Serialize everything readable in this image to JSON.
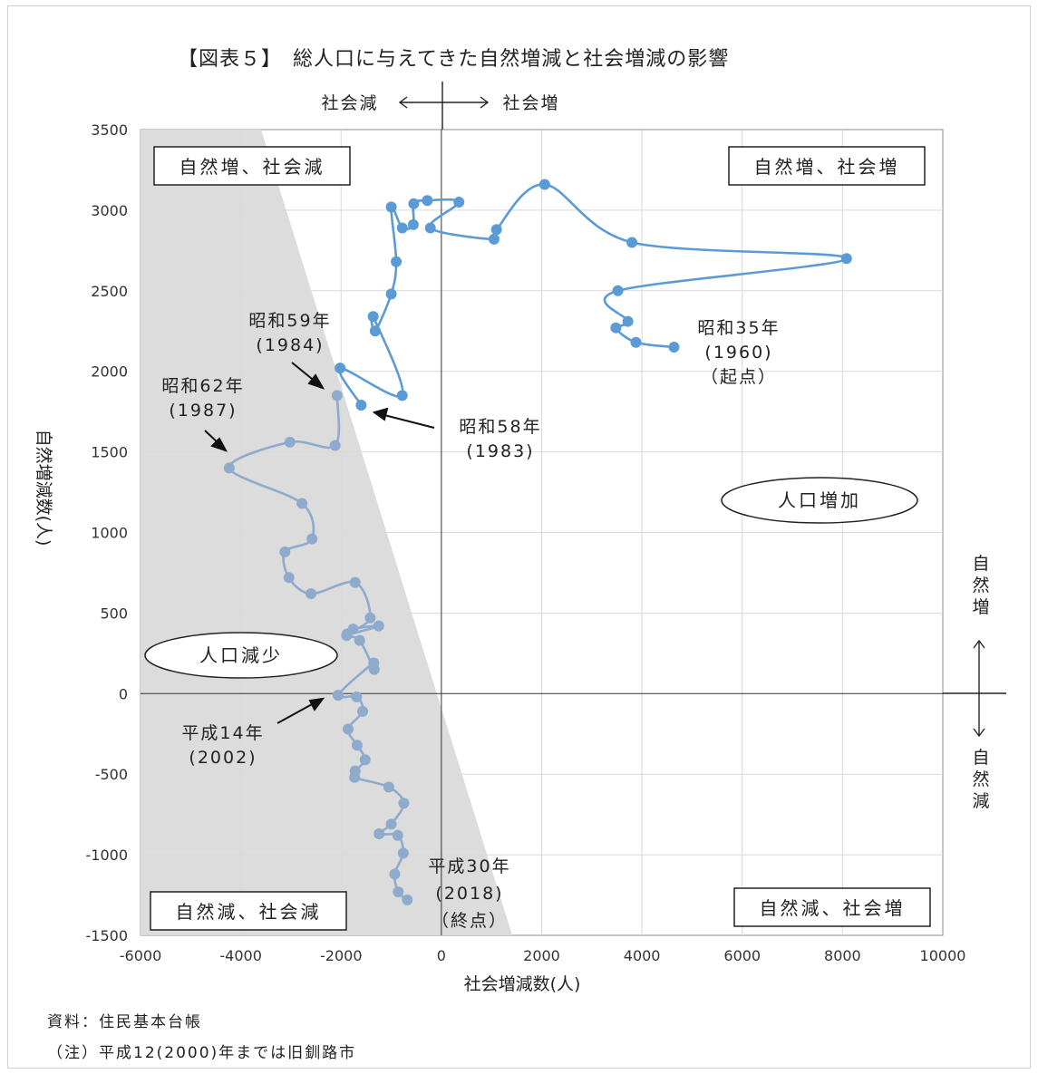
{
  "chart_data": {
    "type": "line",
    "title": "【図表５】　総人口に与えてきた自然増減と社会増減の影響",
    "xlabel": "社会増減数(人)",
    "ylabel": "自然増減数(人)",
    "xlim": [
      -6000,
      10000
    ],
    "ylim": [
      -1500,
      3500
    ],
    "xticks": [
      "-6000",
      "-4000",
      "-2000",
      "0",
      "2000",
      "4000",
      "6000",
      "8000",
      "10000"
    ],
    "yticks": [
      "3500",
      "3000",
      "2500",
      "2000",
      "1500",
      "1000",
      "500",
      "0",
      "-500",
      "-1000",
      "-1500"
    ],
    "grid": true,
    "series": [
      {
        "color": "#5b9bd5",
        "points": [
          [
            4640,
            2150
          ],
          [
            3880,
            2180
          ],
          [
            3480,
            2270
          ],
          [
            3720,
            2310
          ],
          [
            3520,
            2500
          ],
          [
            8080,
            2700
          ],
          [
            3800,
            2800
          ],
          [
            2060,
            3160
          ],
          [
            1100,
            2880
          ],
          [
            1050,
            2820
          ],
          [
            -220,
            2890
          ],
          [
            350,
            3050
          ],
          [
            -280,
            3060
          ],
          [
            -550,
            3040
          ],
          [
            -560,
            2910
          ],
          [
            -780,
            2890
          ],
          [
            -1000,
            3020
          ],
          [
            -900,
            2680
          ],
          [
            -1000,
            2480
          ],
          [
            -1320,
            2250
          ],
          [
            -1360,
            2340
          ],
          [
            -780,
            1850
          ],
          [
            -2020,
            2020
          ],
          [
            -1600,
            1790
          ]
        ]
      },
      {
        "color": "#8eaacc",
        "points": [
          [
            -2080,
            1850
          ],
          [
            -2120,
            1540
          ],
          [
            -3020,
            1560
          ],
          [
            -4230,
            1400
          ],
          [
            -2780,
            1180
          ],
          [
            -2580,
            960
          ],
          [
            -3120,
            880
          ],
          [
            -3040,
            720
          ],
          [
            -2600,
            620
          ],
          [
            -1720,
            690
          ],
          [
            -1420,
            470
          ],
          [
            -1880,
            370
          ],
          [
            -1250,
            420
          ],
          [
            -1760,
            400
          ],
          [
            -1890,
            360
          ],
          [
            -1630,
            330
          ],
          [
            -1340,
            150
          ],
          [
            -1350,
            190
          ],
          [
            -2060,
            -10
          ],
          [
            -1690,
            -20
          ],
          [
            -1570,
            -110
          ],
          [
            -1860,
            -220
          ],
          [
            -1680,
            -320
          ],
          [
            -1520,
            -410
          ],
          [
            -1720,
            -480
          ],
          [
            -1730,
            -520
          ],
          [
            -1050,
            -580
          ],
          [
            -750,
            -680
          ],
          [
            -1000,
            -810
          ],
          [
            -1240,
            -870
          ],
          [
            -870,
            -880
          ],
          [
            -760,
            -990
          ],
          [
            -930,
            -1120
          ],
          [
            -860,
            -1230
          ],
          [
            -680,
            -1280
          ]
        ]
      }
    ],
    "annotations": {
      "start": [
        "昭和35年",
        "(1960)",
        "（起点）"
      ],
      "y1983": [
        "昭和58年",
        "(1983)"
      ],
      "y1984": [
        "昭和59年",
        "(1984)"
      ],
      "y1987": [
        "昭和62年",
        "(1987)"
      ],
      "y2002": [
        "平成14年",
        "(2002)"
      ],
      "end": [
        "平成30年",
        "(2018)",
        "（終点）"
      ]
    },
    "quadrants": {
      "top_left": "自然増、社会減",
      "top_right": "自然増、社会増",
      "bottom_left": "自然減、社会減",
      "bottom_right": "自然減、社会増"
    },
    "ellipses": {
      "increase": "人口増加",
      "decrease": "人口減少"
    },
    "top_axis": {
      "left": "社会減",
      "right": "社会増"
    },
    "side_axis": {
      "up": "自然増",
      "down": "自然減"
    }
  },
  "notes": {
    "source": "資料：住民基本台帳",
    "remark": "（注）平成12(2000)年までは旧釧路市"
  }
}
